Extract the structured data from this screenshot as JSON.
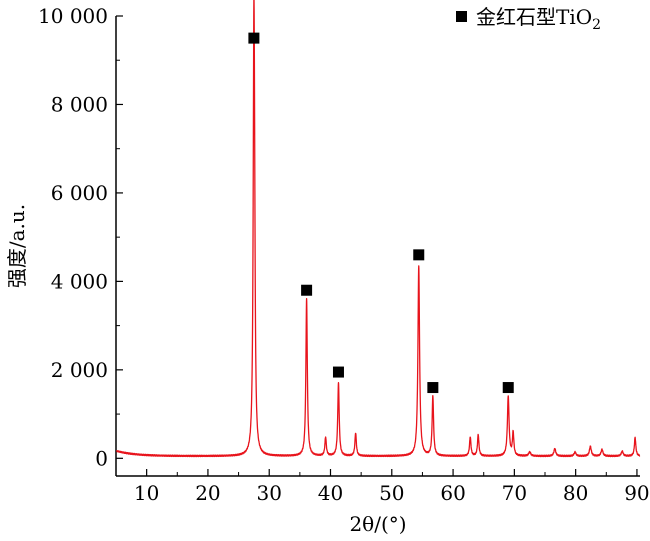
{
  "chart_data": {
    "type": "line",
    "title": "",
    "xlabel": "2θ/(°)",
    "ylabel": "强度/a.u.",
    "xlim": [
      5,
      90.5
    ],
    "ylim": [
      -400,
      10000
    ],
    "x_ticks": [
      10,
      20,
      30,
      40,
      50,
      60,
      70,
      80,
      90
    ],
    "x_tick_labels": [
      "10",
      "20",
      "30",
      "40",
      "50",
      "60",
      "70",
      "80",
      "90"
    ],
    "y_ticks": [
      0,
      2000,
      4000,
      6000,
      8000,
      10000
    ],
    "y_tick_labels": [
      "0",
      "2 000",
      "4 000",
      "6 000",
      "8 000",
      "10 000"
    ],
    "grid": false,
    "legend_position": "top-right",
    "series": [
      {
        "name": "金红石型TiO₂",
        "color": "#e8141c",
        "baseline": 50,
        "background_start": 170,
        "peaks": [
          {
            "x": 27.5,
            "y": 9250,
            "width": 0.14
          },
          {
            "x": 27.62,
            "y": 2200,
            "width": 0.12
          },
          {
            "x": 36.1,
            "y": 3550,
            "width": 0.14
          },
          {
            "x": 39.2,
            "y": 420,
            "width": 0.14
          },
          {
            "x": 41.3,
            "y": 1650,
            "width": 0.14
          },
          {
            "x": 44.1,
            "y": 520,
            "width": 0.14
          },
          {
            "x": 54.4,
            "y": 4300,
            "width": 0.16
          },
          {
            "x": 56.7,
            "y": 1350,
            "width": 0.14
          },
          {
            "x": 62.8,
            "y": 430,
            "width": 0.14
          },
          {
            "x": 64.1,
            "y": 480,
            "width": 0.14
          },
          {
            "x": 69.0,
            "y": 1350,
            "width": 0.16
          },
          {
            "x": 69.8,
            "y": 520,
            "width": 0.14
          },
          {
            "x": 72.5,
            "y": 90,
            "width": 0.2
          },
          {
            "x": 76.6,
            "y": 170,
            "width": 0.18
          },
          {
            "x": 79.9,
            "y": 90,
            "width": 0.18
          },
          {
            "x": 82.4,
            "y": 220,
            "width": 0.18
          },
          {
            "x": 84.3,
            "y": 150,
            "width": 0.18
          },
          {
            "x": 87.6,
            "y": 110,
            "width": 0.18
          },
          {
            "x": 89.7,
            "y": 420,
            "width": 0.14
          }
        ]
      }
    ],
    "markers": [
      {
        "x": 27.5,
        "y": 9500
      },
      {
        "x": 36.1,
        "y": 3800
      },
      {
        "x": 41.3,
        "y": 1950
      },
      {
        "x": 54.4,
        "y": 4600
      },
      {
        "x": 56.7,
        "y": 1600
      },
      {
        "x": 69.0,
        "y": 1600
      }
    ],
    "marker_color": "#000000",
    "legend": [
      {
        "label": "金红石型TiO",
        "subscript": "2",
        "marker": "square",
        "color": "#000000"
      }
    ]
  }
}
